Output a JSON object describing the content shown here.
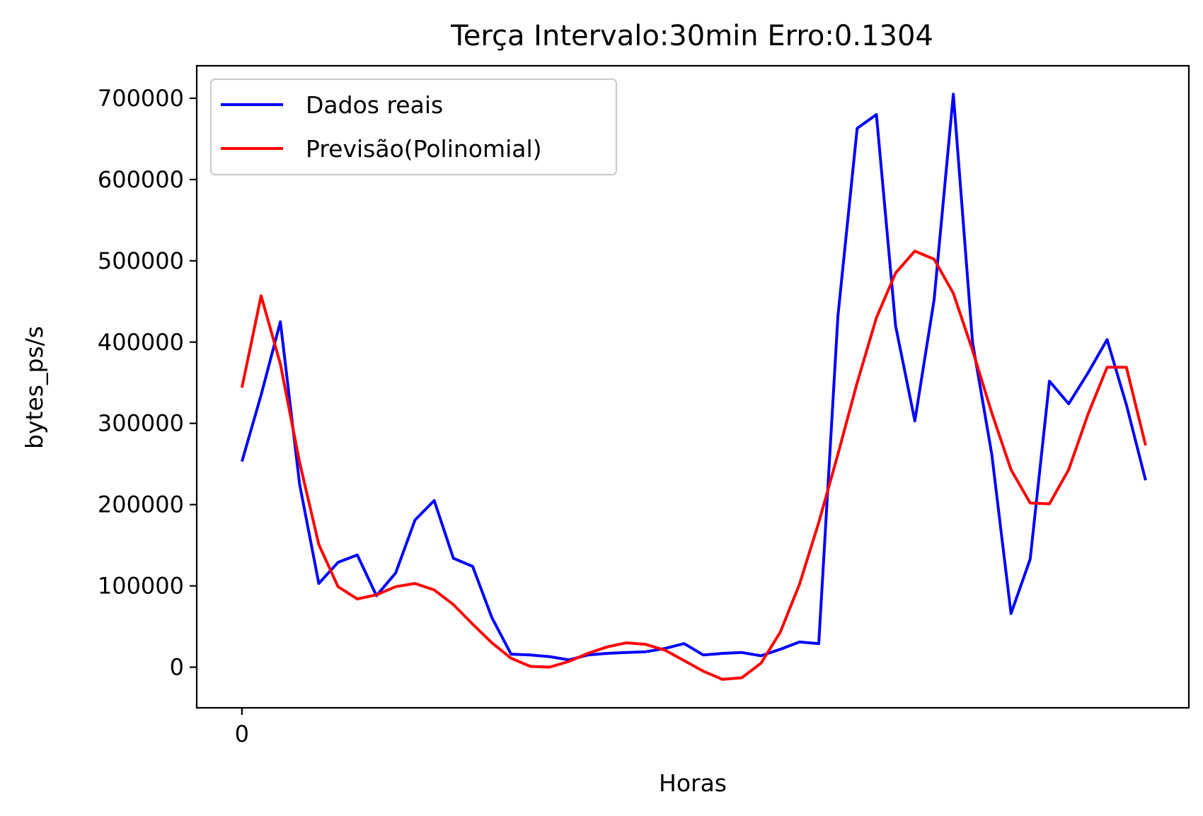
{
  "chart_data": {
    "type": "line",
    "title": "Terça Intervalo:30min Erro:0.1304",
    "xlabel": "Horas",
    "ylabel": "bytes_ps/s",
    "xticks": [
      {
        "value": 0,
        "label": "0"
      }
    ],
    "yticks": [
      {
        "value": 0,
        "label": "0"
      },
      {
        "value": 100000,
        "label": "100000"
      },
      {
        "value": 200000,
        "label": "200000"
      },
      {
        "value": 300000,
        "label": "300000"
      },
      {
        "value": 400000,
        "label": "400000"
      },
      {
        "value": 500000,
        "label": "500000"
      },
      {
        "value": 600000,
        "label": "600000"
      },
      {
        "value": 700000,
        "label": "700000"
      }
    ],
    "xlim": [
      -2.35,
      49.25
    ],
    "ylim": [
      -50000,
      740000
    ],
    "grid": false,
    "legend_position": "upper left",
    "series": [
      {
        "name": "Dados reais",
        "color": "#0000ff",
        "x": [
          0,
          1,
          2,
          3,
          4,
          5,
          6,
          7,
          8,
          9,
          10,
          11,
          12,
          13,
          14,
          15,
          16,
          17,
          18,
          19,
          20,
          21,
          22,
          23,
          24,
          25,
          26,
          27,
          28,
          29,
          30,
          31,
          32,
          33,
          34,
          35,
          36,
          37,
          38,
          39,
          40,
          41,
          42,
          43,
          44,
          45,
          46,
          47
        ],
        "values": [
          253000,
          335000,
          425000,
          225000,
          103000,
          129000,
          138000,
          88000,
          116000,
          181000,
          205000,
          134000,
          124000,
          61000,
          16000,
          15000,
          13000,
          9000,
          15000,
          17000,
          18000,
          19000,
          23000,
          29000,
          15000,
          17000,
          18000,
          14000,
          22000,
          31000,
          29000,
          432000,
          663000,
          680000,
          420000,
          303000,
          452000,
          705000,
          400000,
          262000,
          66000,
          133000,
          352000,
          324000,
          362000,
          403000,
          323000,
          230000
        ]
      },
      {
        "name": "Previsão(Polinomial)",
        "color": "#ff0000",
        "x": [
          0,
          1,
          2,
          3,
          4,
          5,
          6,
          7,
          8,
          9,
          10,
          11,
          12,
          13,
          14,
          15,
          16,
          17,
          18,
          19,
          20,
          21,
          22,
          23,
          24,
          25,
          26,
          27,
          28,
          29,
          30,
          31,
          32,
          33,
          34,
          35,
          36,
          37,
          38,
          39,
          40,
          41,
          42,
          43,
          44,
          45,
          46,
          47
        ],
        "values": [
          344000,
          457000,
          373000,
          252000,
          151000,
          99000,
          84000,
          89000,
          99000,
          103000,
          95000,
          77000,
          53000,
          30000,
          11000,
          1000,
          0,
          7000,
          17000,
          25000,
          30000,
          28000,
          21000,
          8000,
          -5000,
          -15000,
          -13000,
          5000,
          43000,
          102000,
          178000,
          262000,
          350000,
          430000,
          485000,
          512000,
          502000,
          460000,
          390000,
          313000,
          243000,
          202000,
          201000,
          243000,
          311000,
          369000,
          369000,
          273000
        ]
      }
    ]
  }
}
